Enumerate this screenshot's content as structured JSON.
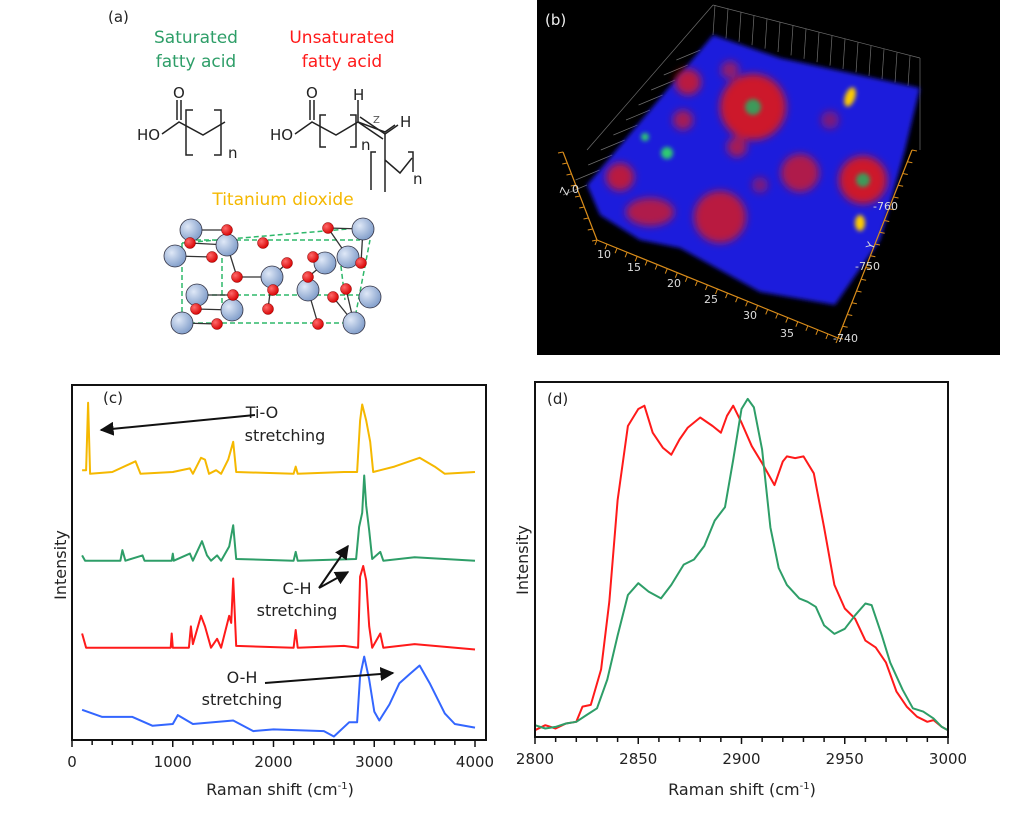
{
  "panel_a": {
    "label": "(a)",
    "saturated": {
      "line1": "Saturated",
      "line2": "fatty acid",
      "color": "#2e9e68"
    },
    "unsaturated": {
      "line1": "Unsaturated",
      "line2": "fatty acid",
      "color": "#ff1a1a"
    },
    "titanium": {
      "title": "Titanium dioxide",
      "color": "#f5b800"
    },
    "chem": {
      "ho": "HO",
      "o": "O",
      "h": "H",
      "n": "n",
      "z": "Z"
    }
  },
  "panel_b": {
    "label": "(b)",
    "x_ticks": [
      "10",
      "15",
      "20",
      "25",
      "30",
      "35"
    ],
    "y_ticks": [
      "-760",
      "-750",
      "-740"
    ],
    "y_label": "Y",
    "z_label": "Z",
    "z_ticks": [
      "0"
    ],
    "colors": {
      "background": "#000000",
      "matrix": "#1a1adc",
      "lipid": "#e01a1a",
      "tio2": "#ffcc00",
      "saturated": "#2ecc71",
      "axis": "#d98c1a"
    }
  },
  "chart_data": [
    {
      "type": "line",
      "panel_label": "(c)",
      "xlabel": "Raman shift (cm-1)",
      "xlabel_main": "Raman shift (cm",
      "xlabel_sup": "-1",
      "xlabel_end": ")",
      "ylabel": "Intensity",
      "xlim": [
        0,
        4000
      ],
      "ylim": [
        0,
        10
      ],
      "xticks": [
        0,
        1000,
        2000,
        3000,
        4000
      ],
      "grid": false,
      "annotations": [
        {
          "line1": "Ti-O",
          "line2": "stretching"
        },
        {
          "line1": "C-H",
          "line2": "stretching"
        },
        {
          "line1": "O-H",
          "line2": "stretching"
        }
      ],
      "series": [
        {
          "color": "#f5b800",
          "points": [
            [
              100,
              7.6
            ],
            [
              140,
              7.6
            ],
            [
              160,
              9.5
            ],
            [
              180,
              7.5
            ],
            [
              400,
              7.55
            ],
            [
              630,
              7.85
            ],
            [
              680,
              7.5
            ],
            [
              1000,
              7.55
            ],
            [
              1170,
              7.65
            ],
            [
              1200,
              7.5
            ],
            [
              1280,
              7.95
            ],
            [
              1320,
              7.9
            ],
            [
              1360,
              7.5
            ],
            [
              1430,
              7.6
            ],
            [
              1480,
              7.5
            ],
            [
              1550,
              7.9
            ],
            [
              1600,
              8.4
            ],
            [
              1630,
              7.55
            ],
            [
              2200,
              7.5
            ],
            [
              2220,
              7.7
            ],
            [
              2240,
              7.5
            ],
            [
              2700,
              7.55
            ],
            [
              2830,
              7.55
            ],
            [
              2860,
              9.0
            ],
            [
              2880,
              9.45
            ],
            [
              2920,
              9.0
            ],
            [
              2960,
              8.4
            ],
            [
              2990,
              7.55
            ],
            [
              3060,
              7.6
            ],
            [
              3200,
              7.7
            ],
            [
              3450,
              7.95
            ],
            [
              3600,
              7.7
            ],
            [
              3700,
              7.5
            ],
            [
              4000,
              7.55
            ]
          ]
        },
        {
          "color": "#2e9e68",
          "points": [
            [
              100,
              5.2
            ],
            [
              130,
              5.05
            ],
            [
              480,
              5.05
            ],
            [
              500,
              5.35
            ],
            [
              530,
              5.05
            ],
            [
              700,
              5.2
            ],
            [
              720,
              5.05
            ],
            [
              990,
              5.05
            ],
            [
              1000,
              5.25
            ],
            [
              1010,
              5.05
            ],
            [
              1170,
              5.25
            ],
            [
              1200,
              5.05
            ],
            [
              1290,
              5.6
            ],
            [
              1340,
              5.2
            ],
            [
              1380,
              5.05
            ],
            [
              1440,
              5.2
            ],
            [
              1480,
              5.05
            ],
            [
              1560,
              5.45
            ],
            [
              1600,
              6.05
            ],
            [
              1630,
              5.1
            ],
            [
              2200,
              5.05
            ],
            [
              2220,
              5.3
            ],
            [
              2240,
              5.05
            ],
            [
              2820,
              5.1
            ],
            [
              2850,
              6.0
            ],
            [
              2880,
              6.4
            ],
            [
              2900,
              7.45
            ],
            [
              2920,
              6.6
            ],
            [
              2950,
              5.9
            ],
            [
              2980,
              5.1
            ],
            [
              3060,
              5.3
            ],
            [
              3090,
              5.05
            ],
            [
              3400,
              5.15
            ],
            [
              4000,
              5.05
            ]
          ]
        },
        {
          "color": "#ff1a1a",
          "points": [
            [
              100,
              3.0
            ],
            [
              140,
              2.6
            ],
            [
              980,
              2.6
            ],
            [
              990,
              3.0
            ],
            [
              1000,
              2.6
            ],
            [
              1160,
              2.6
            ],
            [
              1180,
              3.2
            ],
            [
              1200,
              2.7
            ],
            [
              1280,
              3.5
            ],
            [
              1320,
              3.2
            ],
            [
              1380,
              2.6
            ],
            [
              1440,
              2.85
            ],
            [
              1480,
              2.6
            ],
            [
              1560,
              3.5
            ],
            [
              1580,
              3.3
            ],
            [
              1600,
              4.55
            ],
            [
              1630,
              2.65
            ],
            [
              2200,
              2.6
            ],
            [
              2220,
              3.1
            ],
            [
              2240,
              2.6
            ],
            [
              2700,
              2.65
            ],
            [
              2840,
              2.6
            ],
            [
              2860,
              4.6
            ],
            [
              2890,
              4.9
            ],
            [
              2920,
              4.5
            ],
            [
              2950,
              3.2
            ],
            [
              2980,
              2.6
            ],
            [
              3060,
              3.0
            ],
            [
              3090,
              2.6
            ],
            [
              3400,
              2.7
            ],
            [
              4000,
              2.55
            ]
          ]
        },
        {
          "color": "#3366ff",
          "points": [
            [
              100,
              0.85
            ],
            [
              300,
              0.65
            ],
            [
              600,
              0.65
            ],
            [
              800,
              0.4
            ],
            [
              1000,
              0.45
            ],
            [
              1050,
              0.7
            ],
            [
              1200,
              0.45
            ],
            [
              1400,
              0.5
            ],
            [
              1600,
              0.55
            ],
            [
              1800,
              0.25
            ],
            [
              2000,
              0.3
            ],
            [
              2500,
              0.25
            ],
            [
              2600,
              0.1
            ],
            [
              2750,
              0.5
            ],
            [
              2830,
              0.5
            ],
            [
              2860,
              1.8
            ],
            [
              2900,
              2.35
            ],
            [
              2950,
              1.7
            ],
            [
              3000,
              0.8
            ],
            [
              3050,
              0.55
            ],
            [
              3150,
              1.0
            ],
            [
              3250,
              1.6
            ],
            [
              3350,
              1.85
            ],
            [
              3450,
              2.1
            ],
            [
              3550,
              1.6
            ],
            [
              3700,
              0.75
            ],
            [
              3800,
              0.45
            ],
            [
              4000,
              0.35
            ]
          ]
        }
      ]
    },
    {
      "type": "line",
      "panel_label": "(d)",
      "xlabel": "Raman shift (cm-1)",
      "xlabel_main": "Raman shift (cm",
      "xlabel_sup": "-1",
      "xlabel_end": ")",
      "ylabel": "Intensity",
      "xlim": [
        2800,
        3000
      ],
      "ylim": [
        0,
        1.05
      ],
      "xticks": [
        2800,
        2850,
        2900,
        2950,
        3000
      ],
      "grid": false,
      "series": [
        {
          "color": "#ff1a1a",
          "points": [
            [
              2800,
              0.02
            ],
            [
              2805,
              0.035
            ],
            [
              2810,
              0.025
            ],
            [
              2815,
              0.04
            ],
            [
              2820,
              0.045
            ],
            [
              2823,
              0.09
            ],
            [
              2827,
              0.095
            ],
            [
              2832,
              0.2
            ],
            [
              2836,
              0.4
            ],
            [
              2840,
              0.7
            ],
            [
              2845,
              0.92
            ],
            [
              2850,
              0.97
            ],
            [
              2853,
              0.98
            ],
            [
              2857,
              0.9
            ],
            [
              2862,
              0.855
            ],
            [
              2866,
              0.835
            ],
            [
              2870,
              0.88
            ],
            [
              2874,
              0.915
            ],
            [
              2880,
              0.945
            ],
            [
              2886,
              0.92
            ],
            [
              2890,
              0.9
            ],
            [
              2893,
              0.95
            ],
            [
              2896,
              0.98
            ],
            [
              2900,
              0.93
            ],
            [
              2905,
              0.86
            ],
            [
              2910,
              0.81
            ],
            [
              2916,
              0.745
            ],
            [
              2920,
              0.815
            ],
            [
              2922,
              0.83
            ],
            [
              2926,
              0.825
            ],
            [
              2930,
              0.83
            ],
            [
              2935,
              0.78
            ],
            [
              2940,
              0.62
            ],
            [
              2945,
              0.45
            ],
            [
              2950,
              0.38
            ],
            [
              2955,
              0.35
            ],
            [
              2960,
              0.285
            ],
            [
              2965,
              0.265
            ],
            [
              2970,
              0.22
            ],
            [
              2975,
              0.135
            ],
            [
              2980,
              0.09
            ],
            [
              2985,
              0.06
            ],
            [
              2990,
              0.045
            ],
            [
              2993,
              0.05
            ],
            [
              2997,
              0.03
            ],
            [
              3000,
              0.02
            ]
          ]
        },
        {
          "color": "#2e9e68",
          "points": [
            [
              2800,
              0.035
            ],
            [
              2805,
              0.025
            ],
            [
              2810,
              0.03
            ],
            [
              2815,
              0.04
            ],
            [
              2820,
              0.045
            ],
            [
              2825,
              0.065
            ],
            [
              2830,
              0.085
            ],
            [
              2835,
              0.17
            ],
            [
              2840,
              0.3
            ],
            [
              2845,
              0.42
            ],
            [
              2850,
              0.455
            ],
            [
              2855,
              0.43
            ],
            [
              2861,
              0.41
            ],
            [
              2866,
              0.45
            ],
            [
              2872,
              0.51
            ],
            [
              2877,
              0.525
            ],
            [
              2882,
              0.565
            ],
            [
              2887,
              0.64
            ],
            [
              2892,
              0.68
            ],
            [
              2896,
              0.82
            ],
            [
              2900,
              0.97
            ],
            [
              2903,
              1.0
            ],
            [
              2906,
              0.975
            ],
            [
              2910,
              0.85
            ],
            [
              2914,
              0.62
            ],
            [
              2918,
              0.5
            ],
            [
              2922,
              0.45
            ],
            [
              2928,
              0.41
            ],
            [
              2932,
              0.4
            ],
            [
              2936,
              0.385
            ],
            [
              2940,
              0.33
            ],
            [
              2945,
              0.305
            ],
            [
              2950,
              0.32
            ],
            [
              2955,
              0.36
            ],
            [
              2960,
              0.395
            ],
            [
              2963,
              0.39
            ],
            [
              2968,
              0.3
            ],
            [
              2972,
              0.22
            ],
            [
              2978,
              0.14
            ],
            [
              2983,
              0.085
            ],
            [
              2988,
              0.075
            ],
            [
              2993,
              0.055
            ],
            [
              2997,
              0.03
            ],
            [
              3000,
              0.02
            ]
          ]
        }
      ]
    }
  ]
}
